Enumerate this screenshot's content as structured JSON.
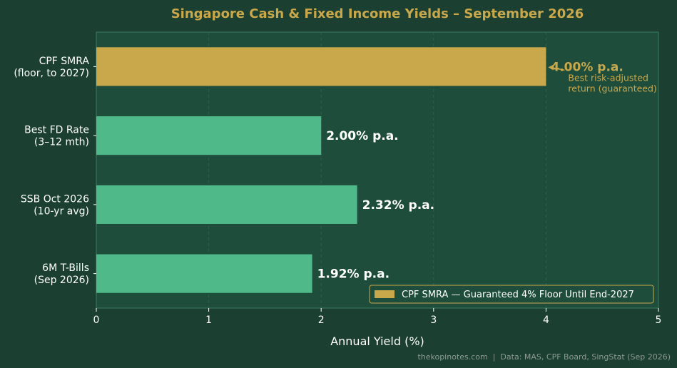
{
  "chart_data": {
    "type": "bar",
    "orientation": "horizontal",
    "title": "Singapore Cash & Fixed Income Yields – September 2026",
    "xlabel": "Annual Yield (%)",
    "ylabel": "",
    "xlim": [
      0,
      5
    ],
    "xticks": [
      "0",
      "1",
      "2",
      "3",
      "4",
      "5"
    ],
    "grid": "vertical dashed",
    "categories": [
      [
        "CPF SMRA",
        "(floor, to 2027)"
      ],
      [
        "Best FD Rate",
        "(3–12 mth)"
      ],
      [
        "SSB Oct 2026",
        "(10-yr avg)"
      ],
      [
        "6M T-Bills",
        "(Sep 2026)"
      ]
    ],
    "values": [
      4.0,
      2.0,
      2.32,
      1.92
    ],
    "value_labels": [
      "4.00% p.a.",
      "2.00% p.a.",
      "2.32% p.a.",
      "1.92% p.a."
    ],
    "bar_colors": [
      "#c9a84c",
      "#50b98a",
      "#50b98a",
      "#50b98a"
    ],
    "highlight_index": 0,
    "annotation": {
      "lines": [
        "Best risk-adjusted",
        "return (guaranteed)"
      ],
      "target_index": 0
    },
    "legend": {
      "placement": "lower-right",
      "entries": [
        {
          "label": "CPF SMRA — Guaranteed 4% Floor Until End-2027",
          "color": "#c9a84c"
        }
      ]
    },
    "footer": "thekopinotes.com  |  Data: MAS, CPF Board, SingStat (Sep 2026)"
  },
  "colors": {
    "background": "#1b3f31",
    "plot_background": "#1e4d3c",
    "accent": "#c9a84c",
    "bar": "#50b98a",
    "text": "#ffffff",
    "grid": "#2f5f4d"
  }
}
